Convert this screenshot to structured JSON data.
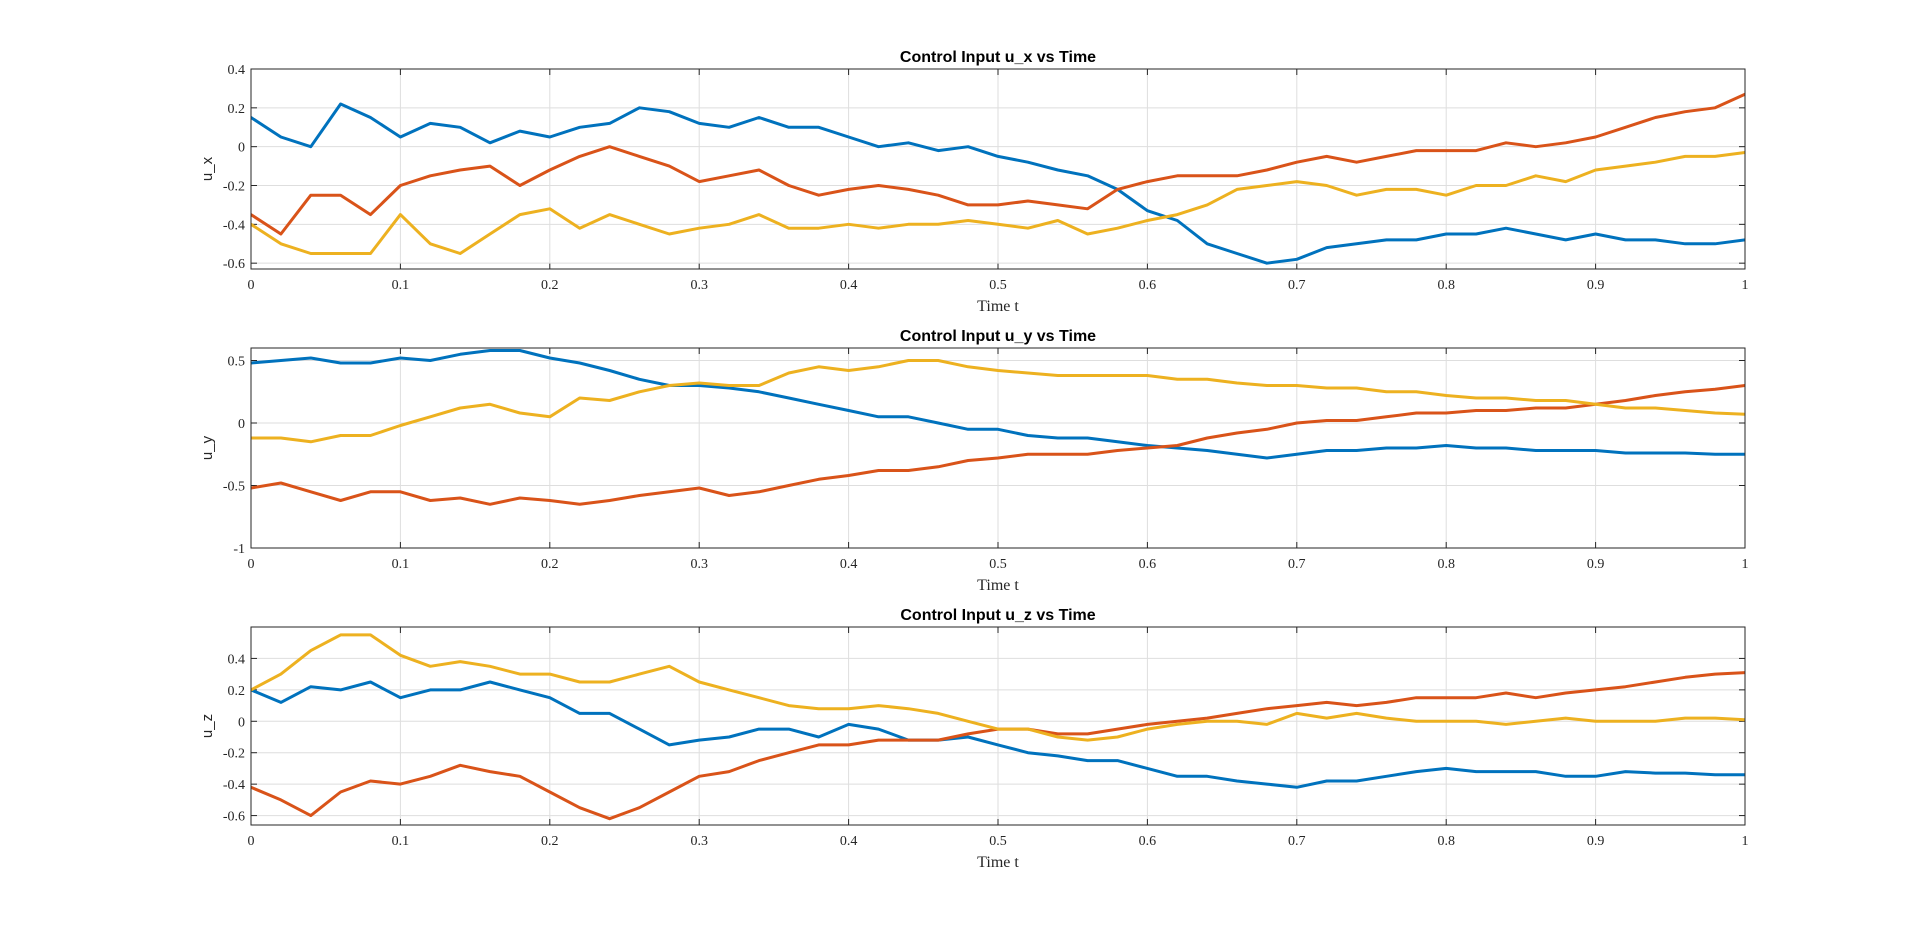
{
  "colors": {
    "series_1": "#0072BD",
    "series_2": "#D95319",
    "series_3": "#EDB120"
  },
  "chart_data": [
    {
      "type": "line",
      "title": "Control Input u_x vs Time",
      "xlabel": "Time t",
      "ylabel": "u_x",
      "xlim": [
        0,
        1
      ],
      "ylim": [
        -0.63,
        0.4
      ],
      "xticks": [
        "0",
        "0.1",
        "0.2",
        "0.3",
        "0.4",
        "0.5",
        "0.6",
        "0.7",
        "0.8",
        "0.9",
        "1"
      ],
      "yticks": [
        {
          "v": 0.4,
          "label": "0.4"
        },
        {
          "v": 0.2,
          "label": "0.2"
        },
        {
          "v": 0,
          "label": "0"
        },
        {
          "v": -0.2,
          "label": "-0.2"
        },
        {
          "v": -0.4,
          "label": "-0.4"
        },
        {
          "v": -0.6,
          "label": "-0.6"
        }
      ],
      "grid": true,
      "x": [
        0,
        0.02,
        0.04,
        0.06,
        0.08,
        0.1,
        0.12,
        0.14,
        0.16,
        0.18,
        0.2,
        0.22,
        0.24,
        0.26,
        0.28,
        0.3,
        0.32,
        0.34,
        0.36,
        0.38,
        0.4,
        0.42,
        0.44,
        0.46,
        0.48,
        0.5,
        0.52,
        0.54,
        0.56,
        0.58,
        0.6,
        0.62,
        0.64,
        0.66,
        0.68,
        0.7,
        0.72,
        0.74,
        0.76,
        0.78,
        0.8,
        0.82,
        0.84,
        0.86,
        0.88,
        0.9,
        0.92,
        0.94,
        0.96,
        0.98,
        1
      ],
      "series": [
        {
          "values": [
            0.15,
            0.05,
            0.0,
            0.22,
            0.15,
            0.05,
            0.12,
            0.1,
            0.02,
            0.08,
            0.05,
            0.1,
            0.12,
            0.2,
            0.18,
            0.12,
            0.1,
            0.15,
            0.1,
            0.1,
            0.05,
            0.0,
            0.02,
            -0.02,
            0.0,
            -0.05,
            -0.08,
            -0.12,
            -0.15,
            -0.22,
            -0.33,
            -0.38,
            -0.5,
            -0.55,
            -0.6,
            -0.58,
            -0.52,
            -0.5,
            -0.48,
            -0.48,
            -0.45,
            -0.45,
            -0.42,
            -0.45,
            -0.48,
            -0.45,
            -0.48,
            -0.48,
            -0.5,
            -0.5,
            -0.48
          ]
        },
        {
          "values": [
            -0.35,
            -0.45,
            -0.25,
            -0.25,
            -0.35,
            -0.2,
            -0.15,
            -0.12,
            -0.1,
            -0.2,
            -0.12,
            -0.05,
            0.0,
            -0.05,
            -0.1,
            -0.18,
            -0.15,
            -0.12,
            -0.2,
            -0.25,
            -0.22,
            -0.2,
            -0.22,
            -0.25,
            -0.3,
            -0.3,
            -0.28,
            -0.3,
            -0.32,
            -0.22,
            -0.18,
            -0.15,
            -0.15,
            -0.15,
            -0.12,
            -0.08,
            -0.05,
            -0.08,
            -0.05,
            -0.02,
            -0.02,
            -0.02,
            0.02,
            0.0,
            0.02,
            0.05,
            0.1,
            0.15,
            0.18,
            0.2,
            0.27
          ]
        },
        {
          "values": [
            -0.4,
            -0.5,
            -0.55,
            -0.55,
            -0.55,
            -0.35,
            -0.5,
            -0.55,
            -0.45,
            -0.35,
            -0.32,
            -0.42,
            -0.35,
            -0.4,
            -0.45,
            -0.42,
            -0.4,
            -0.35,
            -0.42,
            -0.42,
            -0.4,
            -0.42,
            -0.4,
            -0.4,
            -0.38,
            -0.4,
            -0.42,
            -0.38,
            -0.45,
            -0.42,
            -0.38,
            -0.35,
            -0.3,
            -0.22,
            -0.2,
            -0.18,
            -0.2,
            -0.25,
            -0.22,
            -0.22,
            -0.25,
            -0.2,
            -0.2,
            -0.15,
            -0.18,
            -0.12,
            -0.1,
            -0.08,
            -0.05,
            -0.05,
            -0.03
          ]
        }
      ]
    },
    {
      "type": "line",
      "title": "Control Input u_y vs Time",
      "xlabel": "Time t",
      "ylabel": "u_y",
      "xlim": [
        0,
        1
      ],
      "ylim": [
        -1,
        0.6
      ],
      "xticks": [
        "0",
        "0.1",
        "0.2",
        "0.3",
        "0.4",
        "0.5",
        "0.6",
        "0.7",
        "0.8",
        "0.9",
        "1"
      ],
      "yticks": [
        {
          "v": 0.5,
          "label": "0.5"
        },
        {
          "v": 0,
          "label": "0"
        },
        {
          "v": -0.5,
          "label": "-0.5"
        },
        {
          "v": -1,
          "label": "-1"
        }
      ],
      "grid": true,
      "x": [
        0,
        0.02,
        0.04,
        0.06,
        0.08,
        0.1,
        0.12,
        0.14,
        0.16,
        0.18,
        0.2,
        0.22,
        0.24,
        0.26,
        0.28,
        0.3,
        0.32,
        0.34,
        0.36,
        0.38,
        0.4,
        0.42,
        0.44,
        0.46,
        0.48,
        0.5,
        0.52,
        0.54,
        0.56,
        0.58,
        0.6,
        0.62,
        0.64,
        0.66,
        0.68,
        0.7,
        0.72,
        0.74,
        0.76,
        0.78,
        0.8,
        0.82,
        0.84,
        0.86,
        0.88,
        0.9,
        0.92,
        0.94,
        0.96,
        0.98,
        1
      ],
      "series": [
        {
          "values": [
            0.48,
            0.5,
            0.52,
            0.48,
            0.48,
            0.52,
            0.5,
            0.55,
            0.58,
            0.58,
            0.52,
            0.48,
            0.42,
            0.35,
            0.3,
            0.3,
            0.28,
            0.25,
            0.2,
            0.15,
            0.1,
            0.05,
            0.05,
            0.0,
            -0.05,
            -0.05,
            -0.1,
            -0.12,
            -0.12,
            -0.15,
            -0.18,
            -0.2,
            -0.22,
            -0.25,
            -0.28,
            -0.25,
            -0.22,
            -0.22,
            -0.2,
            -0.2,
            -0.18,
            -0.2,
            -0.2,
            -0.22,
            -0.22,
            -0.22,
            -0.24,
            -0.24,
            -0.24,
            -0.25,
            -0.25
          ]
        },
        {
          "values": [
            -0.52,
            -0.48,
            -0.55,
            -0.62,
            -0.55,
            -0.55,
            -0.62,
            -0.6,
            -0.65,
            -0.6,
            -0.62,
            -0.65,
            -0.62,
            -0.58,
            -0.55,
            -0.52,
            -0.58,
            -0.55,
            -0.5,
            -0.45,
            -0.42,
            -0.38,
            -0.38,
            -0.35,
            -0.3,
            -0.28,
            -0.25,
            -0.25,
            -0.25,
            -0.22,
            -0.2,
            -0.18,
            -0.12,
            -0.08,
            -0.05,
            0.0,
            0.02,
            0.02,
            0.05,
            0.08,
            0.08,
            0.1,
            0.1,
            0.12,
            0.12,
            0.15,
            0.18,
            0.22,
            0.25,
            0.27,
            0.3
          ]
        },
        {
          "values": [
            -0.12,
            -0.12,
            -0.15,
            -0.1,
            -0.1,
            -0.02,
            0.05,
            0.12,
            0.15,
            0.08,
            0.05,
            0.2,
            0.18,
            0.25,
            0.3,
            0.32,
            0.3,
            0.3,
            0.4,
            0.45,
            0.42,
            0.45,
            0.5,
            0.5,
            0.45,
            0.42,
            0.4,
            0.38,
            0.38,
            0.38,
            0.38,
            0.35,
            0.35,
            0.32,
            0.3,
            0.3,
            0.28,
            0.28,
            0.25,
            0.25,
            0.22,
            0.2,
            0.2,
            0.18,
            0.18,
            0.15,
            0.12,
            0.12,
            0.1,
            0.08,
            0.07
          ]
        }
      ]
    },
    {
      "type": "line",
      "title": "Control Input u_z vs Time",
      "xlabel": "Time t",
      "ylabel": "u_z",
      "xlim": [
        0,
        1
      ],
      "ylim": [
        -0.66,
        0.6
      ],
      "xticks": [
        "0",
        "0.1",
        "0.2",
        "0.3",
        "0.4",
        "0.5",
        "0.6",
        "0.7",
        "0.8",
        "0.9",
        "1"
      ],
      "yticks": [
        {
          "v": 0.4,
          "label": "0.4"
        },
        {
          "v": 0.2,
          "label": "0.2"
        },
        {
          "v": 0,
          "label": "0"
        },
        {
          "v": -0.2,
          "label": "-0.2"
        },
        {
          "v": -0.4,
          "label": "-0.4"
        },
        {
          "v": -0.6,
          "label": "-0.6"
        }
      ],
      "grid": true,
      "x": [
        0,
        0.02,
        0.04,
        0.06,
        0.08,
        0.1,
        0.12,
        0.14,
        0.16,
        0.18,
        0.2,
        0.22,
        0.24,
        0.26,
        0.28,
        0.3,
        0.32,
        0.34,
        0.36,
        0.38,
        0.4,
        0.42,
        0.44,
        0.46,
        0.48,
        0.5,
        0.52,
        0.54,
        0.56,
        0.58,
        0.6,
        0.62,
        0.64,
        0.66,
        0.68,
        0.7,
        0.72,
        0.74,
        0.76,
        0.78,
        0.8,
        0.82,
        0.84,
        0.86,
        0.88,
        0.9,
        0.92,
        0.94,
        0.96,
        0.98,
        1
      ],
      "series": [
        {
          "values": [
            0.2,
            0.12,
            0.22,
            0.2,
            0.25,
            0.15,
            0.2,
            0.2,
            0.25,
            0.2,
            0.15,
            0.05,
            0.05,
            -0.05,
            -0.15,
            -0.12,
            -0.1,
            -0.05,
            -0.05,
            -0.1,
            -0.02,
            -0.05,
            -0.12,
            -0.12,
            -0.1,
            -0.15,
            -0.2,
            -0.22,
            -0.25,
            -0.25,
            -0.3,
            -0.35,
            -0.35,
            -0.38,
            -0.4,
            -0.42,
            -0.38,
            -0.38,
            -0.35,
            -0.32,
            -0.3,
            -0.32,
            -0.32,
            -0.32,
            -0.35,
            -0.35,
            -0.32,
            -0.33,
            -0.33,
            -0.34,
            -0.34
          ]
        },
        {
          "values": [
            -0.42,
            -0.5,
            -0.6,
            -0.45,
            -0.38,
            -0.4,
            -0.35,
            -0.28,
            -0.32,
            -0.35,
            -0.45,
            -0.55,
            -0.62,
            -0.55,
            -0.45,
            -0.35,
            -0.32,
            -0.25,
            -0.2,
            -0.15,
            -0.15,
            -0.12,
            -0.12,
            -0.12,
            -0.08,
            -0.05,
            -0.05,
            -0.08,
            -0.08,
            -0.05,
            -0.02,
            0.0,
            0.02,
            0.05,
            0.08,
            0.1,
            0.12,
            0.1,
            0.12,
            0.15,
            0.15,
            0.15,
            0.18,
            0.15,
            0.18,
            0.2,
            0.22,
            0.25,
            0.28,
            0.3,
            0.31
          ]
        },
        {
          "values": [
            0.2,
            0.3,
            0.45,
            0.55,
            0.55,
            0.42,
            0.35,
            0.38,
            0.35,
            0.3,
            0.3,
            0.25,
            0.25,
            0.3,
            0.35,
            0.25,
            0.2,
            0.15,
            0.1,
            0.08,
            0.08,
            0.1,
            0.08,
            0.05,
            0.0,
            -0.05,
            -0.05,
            -0.1,
            -0.12,
            -0.1,
            -0.05,
            -0.02,
            0.0,
            0.0,
            -0.02,
            0.05,
            0.02,
            0.05,
            0.02,
            0.0,
            0.0,
            0.0,
            -0.02,
            0.0,
            0.02,
            0.0,
            0.0,
            0.0,
            0.02,
            0.02,
            0.01
          ]
        }
      ]
    }
  ]
}
